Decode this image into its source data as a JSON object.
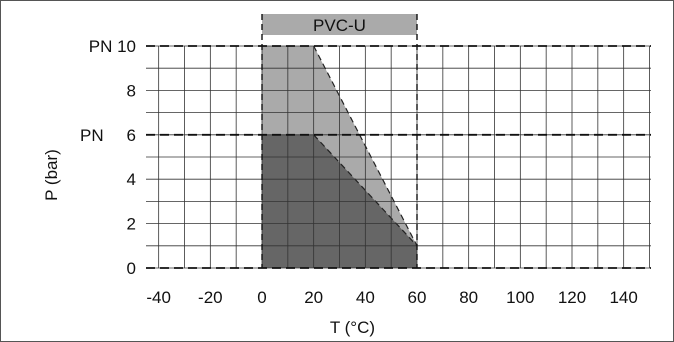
{
  "chart_data": {
    "type": "area",
    "xlabel": "T (°C)",
    "ylabel": "P (bar)",
    "xlim": [
      -45,
      150
    ],
    "ylim": [
      0,
      10
    ],
    "x_ticks": [
      -40,
      -20,
      0,
      20,
      40,
      60,
      80,
      100,
      120,
      140
    ],
    "x_tick_labels": [
      "-40",
      "-20",
      "0",
      "20",
      "40",
      "60",
      "80",
      "100",
      "120",
      "140"
    ],
    "y_ticks": [
      0,
      2,
      4,
      6,
      8,
      10
    ],
    "y_tick_labels": [
      "0",
      "2",
      "4",
      "6",
      "8",
      "PN 10"
    ],
    "extra_y_labels": [
      {
        "value": 6,
        "label": "PN"
      }
    ],
    "grid": true,
    "material_band": {
      "label": "PVC-U",
      "x_range": [
        0,
        60
      ]
    },
    "series": [
      {
        "name": "PN 10",
        "color": "#aaaaaa",
        "x": [
          0,
          20,
          60,
          60,
          0
        ],
        "y": [
          10,
          10,
          1,
          0,
          0
        ]
      },
      {
        "name": "PN 6",
        "color": "#666666",
        "x": [
          0,
          20,
          60,
          60,
          0
        ],
        "y": [
          6,
          6,
          1,
          0,
          0
        ]
      }
    ],
    "reference_lines": {
      "horizontal": [
        0,
        6,
        10
      ],
      "vertical": [
        0,
        60
      ]
    }
  }
}
